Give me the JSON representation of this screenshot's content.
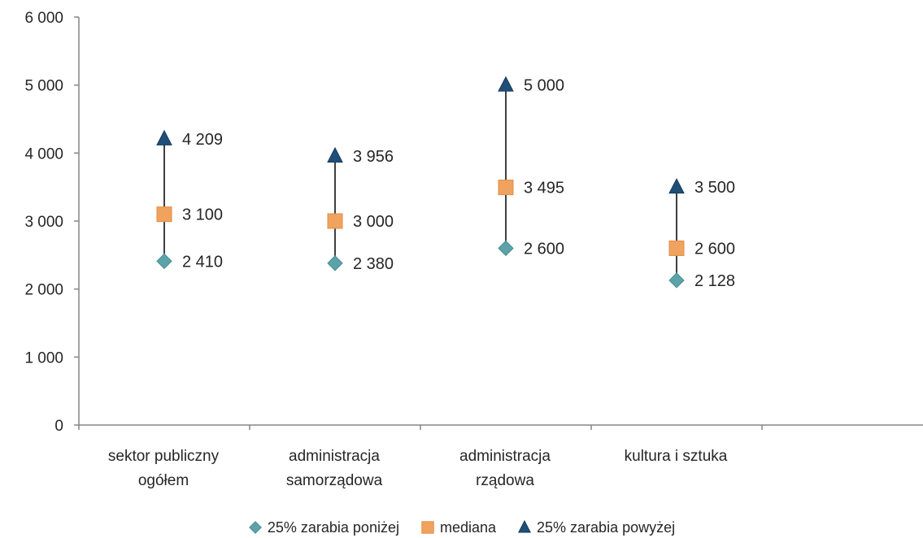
{
  "chart_data": {
    "type": "scatter",
    "title": "",
    "xlabel": "",
    "ylabel": "",
    "ylim": [
      0,
      6000
    ],
    "yticks": [
      0,
      1000,
      2000,
      3000,
      4000,
      5000,
      6000
    ],
    "ytick_labels": [
      "0",
      "1 000",
      "2 000",
      "3 000",
      "4 000",
      "5 000",
      "6 000"
    ],
    "grid": false,
    "legend_position": "bottom",
    "categories": [
      [
        "sektor publiczny",
        "ogółem"
      ],
      [
        "administracja",
        "samorządowa"
      ],
      [
        "administracja",
        "rządowa"
      ],
      [
        "kultura i sztuka"
      ]
    ],
    "series": [
      {
        "name": "25% zarabia poniżej",
        "marker": "diamond",
        "color": "#5BA3A8",
        "values": [
          2410,
          2380,
          2600,
          2128
        ],
        "labels": [
          "2 410",
          "2 380",
          "2 600",
          "2 128"
        ]
      },
      {
        "name": "mediana",
        "marker": "square",
        "color": "#F0A35E",
        "values": [
          3100,
          3000,
          3495,
          2600
        ],
        "labels": [
          "3 100",
          "3 000",
          "3 495",
          "2 600"
        ]
      },
      {
        "name": "25% zarabia powyżej",
        "marker": "triangle",
        "color": "#1F4E79",
        "values": [
          4209,
          3956,
          5000,
          3500
        ],
        "labels": [
          "4 209",
          "3 956",
          "5 000",
          "3 500"
        ]
      }
    ],
    "high_low_lines": true
  }
}
